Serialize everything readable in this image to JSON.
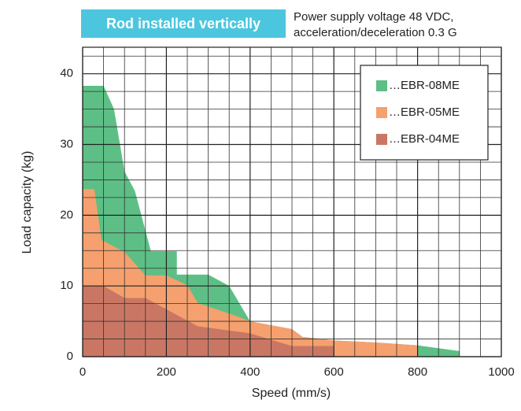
{
  "chart_data": {
    "type": "area",
    "title": "Rod installed vertically",
    "annotation": [
      "Power supply voltage 48 VDC,",
      "acceleration/deceleration 0.3 G"
    ],
    "x_label": "Speed (mm/s)",
    "y_label": "Load capacity (kg)",
    "xlim": [
      0,
      1000
    ],
    "ylim": [
      0,
      43.75
    ],
    "xticks": [
      0,
      200,
      400,
      600,
      800,
      1000
    ],
    "yticks": [
      0,
      10,
      20,
      30,
      40
    ],
    "x_minor_ticks": [
      50,
      100,
      150,
      250,
      300,
      350,
      450,
      500,
      550,
      650,
      700,
      750,
      850,
      900,
      950
    ],
    "y_minor_ticks": [
      2.5,
      5,
      7.5,
      12.5,
      15,
      17.5,
      22.5,
      25,
      27.5,
      32.5,
      35,
      37.5,
      42.5
    ],
    "grid": true,
    "legend": "upper right",
    "series": [
      {
        "name": "…EBR-08ME",
        "color": "#5dbf85",
        "x": [
          0,
          50,
          75,
          100,
          125,
          163,
          225,
          225,
          300,
          350,
          400,
          500,
          525,
          600,
          700,
          800,
          900
        ],
        "values": [
          38.3,
          38.3,
          35,
          26.2,
          23.4,
          14.9,
          14.9,
          11.6,
          11.6,
          10,
          5,
          3.9,
          2.8,
          2.3,
          2,
          1.6,
          0.8
        ]
      },
      {
        "name": "…EBR-05ME",
        "color": "#f5a06e",
        "x": [
          0,
          28,
          45,
          100,
          150,
          200,
          250,
          275,
          375,
          400,
          500,
          525,
          600,
          700,
          800
        ],
        "values": [
          23.7,
          23.7,
          16.5,
          14.8,
          11.5,
          11.5,
          10.1,
          7.6,
          5.6,
          5,
          3.9,
          2.8,
          2.3,
          2,
          1.6
        ]
      },
      {
        "name": "…EBR-04ME",
        "color": "#c97764",
        "x": [
          0,
          50,
          100,
          150,
          275,
          400,
          500,
          600
        ],
        "values": [
          10,
          10,
          8.3,
          8.3,
          4.3,
          3.3,
          1.5,
          1.5
        ]
      }
    ]
  }
}
